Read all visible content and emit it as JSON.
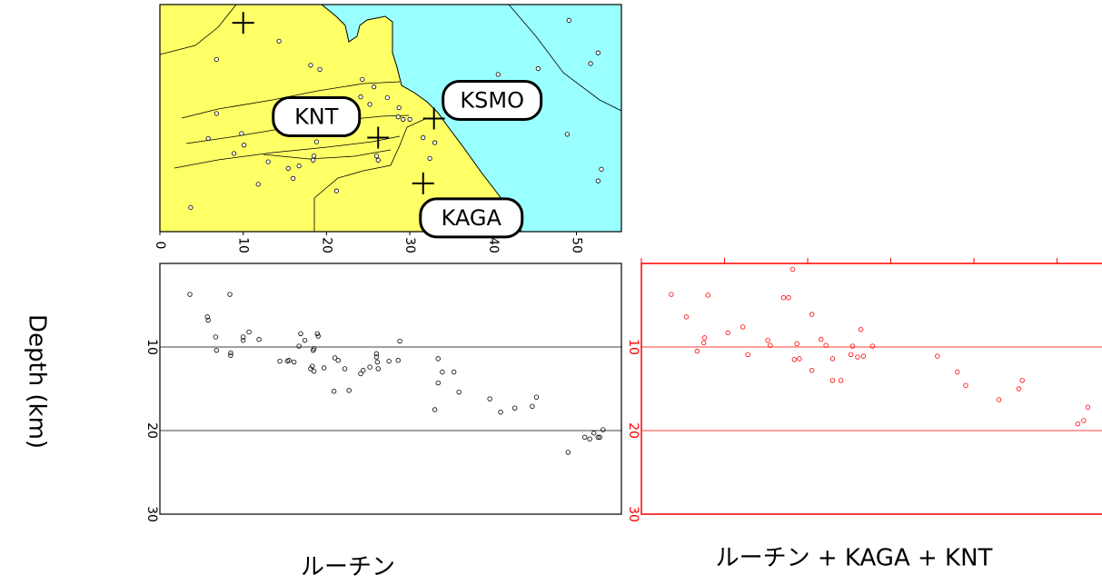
{
  "chart_data": [
    {
      "type": "map",
      "xlim": [
        0,
        55.4
      ],
      "ylim": [
        0,
        27.3
      ],
      "xticks": [
        0,
        10,
        20,
        30,
        40,
        50
      ],
      "land_color": "#ffff66",
      "sea_color": "#99ffff",
      "stations": {
        "labels": [
          null,
          "KNT",
          "KSMO",
          "KAGA"
        ],
        "x": [
          10.0,
          26.2,
          32.9,
          31.6
        ],
        "y": [
          25.1,
          11.3,
          13.6,
          5.8
        ]
      },
      "events": {
        "x": [
          14.3,
          6.8,
          18.1,
          19.2,
          24.3,
          24.1,
          25.7,
          25.2,
          27.3,
          28.7,
          28.6,
          30.0,
          29.2,
          6.8,
          5.8,
          9.8,
          10.1,
          15.8,
          18.8,
          18.5,
          16.7,
          15.4,
          18.4,
          26.0,
          26.2,
          23.7,
          22.6,
          33.0,
          31.6,
          11.8,
          16.0,
          21.2,
          3.7,
          45.4,
          51.7,
          52.6,
          49.1,
          40.6,
          48.9,
          53.0,
          52.6,
          40.1,
          32.4,
          8.9,
          13.0
        ],
        "y": [
          22.9,
          20.7,
          20.0,
          19.5,
          18.3,
          16.2,
          17.4,
          15.3,
          16.1,
          14.9,
          13.8,
          13.5,
          13.5,
          14.2,
          11.2,
          11.8,
          10.4,
          13.1,
          10.8,
          9.1,
          7.9,
          7.6,
          8.6,
          9.1,
          8.6,
          13.2,
          13.1,
          10.7,
          11.3,
          5.7,
          6.4,
          4.9,
          2.9,
          19.6,
          20.2,
          21.5,
          25.4,
          18.9,
          11.7,
          7.5,
          6.1,
          2.3,
          8.8,
          9.4,
          8.4
        ]
      }
    },
    {
      "type": "scatter",
      "y_label": "Depth (km)",
      "caption": "ルーチン",
      "color": "#000000",
      "xlim": [
        0,
        55.4
      ],
      "ylim": [
        0,
        30
      ],
      "yticks": [
        10,
        20,
        30
      ],
      "grid": true,
      "x": [
        3.6,
        8.4,
        5.7,
        5.8,
        6.7,
        6.8,
        8.5,
        8.5,
        10.0,
        10.0,
        10.7,
        11.9,
        16.9,
        18.9,
        19.0,
        16.7,
        17.4,
        18.5,
        18.4,
        14.4,
        15.3,
        15.5,
        16.1,
        18.3,
        18.5,
        18.1,
        21.0,
        21.4,
        19.7,
        22.2,
        20.9,
        22.7,
        24.1,
        24.4,
        25.2,
        26.0,
        26.1,
        26.2,
        26.0,
        27.5,
        28.8,
        28.6,
        33.4,
        33.4,
        33.9,
        35.3,
        35.9,
        33.0,
        39.6,
        40.9,
        42.6,
        44.7,
        45.2,
        49.0,
        51.0,
        51.6,
        52.1,
        52.8,
        53.2,
        52.6
      ],
      "y": [
        3.7,
        3.7,
        6.4,
        6.8,
        8.8,
        10.4,
        10.7,
        11.0,
        8.8,
        9.2,
        8.2,
        9.1,
        8.4,
        8.4,
        8.7,
        9.9,
        9.2,
        10.2,
        10.4,
        11.7,
        11.7,
        11.6,
        11.8,
        12.3,
        12.9,
        12.6,
        11.3,
        11.6,
        12.5,
        12.6,
        15.3,
        15.2,
        13.2,
        12.8,
        12.4,
        11.2,
        11.8,
        12.6,
        10.8,
        11.7,
        9.3,
        11.6,
        11.4,
        14.3,
        13.0,
        13.0,
        15.4,
        17.5,
        16.2,
        17.8,
        17.3,
        17.1,
        16.0,
        22.6,
        20.8,
        21.0,
        20.3,
        20.8,
        19.9,
        20.8
      ]
    },
    {
      "type": "scatter",
      "caption": "ルーチン + KAGA + KNT",
      "color": "#ff0000",
      "xlim": [
        0,
        55.4
      ],
      "ylim": [
        0,
        30
      ],
      "xticks": [
        0,
        10,
        20,
        30,
        40,
        50
      ],
      "yticks": [
        10,
        20,
        30
      ],
      "grid": true,
      "x": [
        3.6,
        8.0,
        5.4,
        6.7,
        7.5,
        7.6,
        10.4,
        12.2,
        12.8,
        15.2,
        15.5,
        17.1,
        17.7,
        18.2,
        18.7,
        18.4,
        19.0,
        20.5,
        20.5,
        21.6,
        22.2,
        23.0,
        23.0,
        24.0,
        25.2,
        26.0,
        26.7,
        26.4,
        27.8,
        25.4,
        35.6,
        38.0,
        39.0,
        43.0,
        45.4,
        45.8,
        52.5,
        53.2,
        53.7
      ],
      "y": [
        3.7,
        3.8,
        6.4,
        10.5,
        9.5,
        8.9,
        8.3,
        7.6,
        10.9,
        9.2,
        9.8,
        4.1,
        4.1,
        0.7,
        9.6,
        11.5,
        11.4,
        12.8,
        6.1,
        9.1,
        9.8,
        11.4,
        14.0,
        14.0,
        10.9,
        11.2,
        11.1,
        7.9,
        9.9,
        9.9,
        11.1,
        13.0,
        14.6,
        16.3,
        15.0,
        14.0,
        19.2,
        18.8,
        17.2
      ]
    }
  ]
}
